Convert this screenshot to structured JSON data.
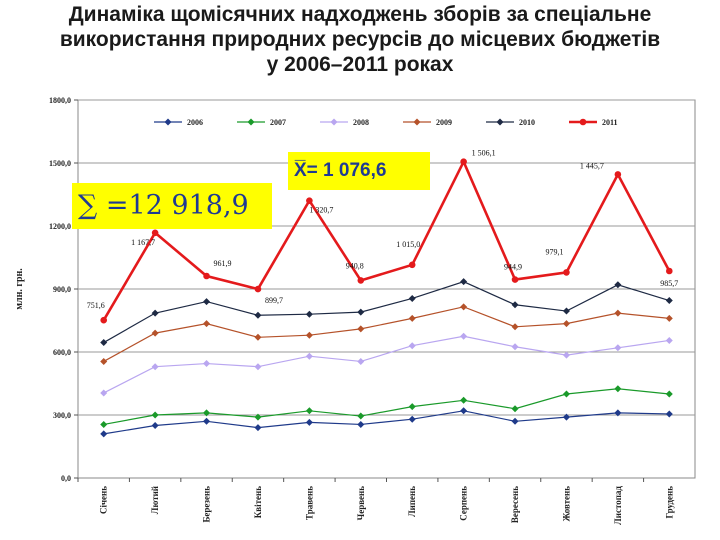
{
  "title": {
    "line1": "Динаміка щомісячних надходжень зборів за спеціальне",
    "line2": "використання природних ресурсів до місцевих бюджетів",
    "line3": "у 2006–2011 роках"
  },
  "annotations": {
    "mean": "X̅= 1 076,6",
    "sum": "∑ =12 918,9"
  },
  "colors": {
    "2006": "#1f3a8a",
    "2007": "#1a9a2a",
    "2008": "#b9a6f0",
    "2009": "#b5522a",
    "2010": "#1e2a44",
    "2011": "#e41a1c",
    "callout": "#ffff00"
  },
  "chart_data": {
    "type": "line",
    "ylabel": "млн. грн.",
    "xlabel": "",
    "ylim": [
      0,
      1800
    ],
    "yticks": [
      "0,0",
      "300,0",
      "600,0",
      "900,0",
      "1200,0",
      "1500,0",
      "1800,0"
    ],
    "grid": "horizontal",
    "legend": "top",
    "categories": [
      "Січень",
      "Лютий",
      "Березень",
      "Квітень",
      "Травень",
      "Червень",
      "Липень",
      "Серпень",
      "Вересень",
      "Жовтень",
      "Листопад",
      "Грудень"
    ],
    "series": [
      {
        "name": "2006",
        "values": [
          210,
          250,
          270,
          240,
          265,
          255,
          280,
          320,
          270,
          290,
          310,
          305
        ]
      },
      {
        "name": "2007",
        "values": [
          255,
          300,
          310,
          290,
          320,
          295,
          340,
          370,
          330,
          400,
          425,
          400
        ]
      },
      {
        "name": "2008",
        "values": [
          405,
          530,
          545,
          530,
          580,
          555,
          630,
          675,
          625,
          585,
          620,
          655
        ]
      },
      {
        "name": "2009",
        "values": [
          555,
          690,
          735,
          670,
          680,
          710,
          760,
          815,
          720,
          735,
          785,
          760
        ]
      },
      {
        "name": "2010",
        "values": [
          645,
          785,
          840,
          775,
          780,
          790,
          855,
          935,
          825,
          795,
          920,
          845
        ]
      },
      {
        "name": "2011",
        "values": [
          751.6,
          1167.7,
          961.9,
          899.7,
          1320.7,
          940.8,
          1015.0,
          1506.1,
          944.9,
          979.1,
          1445.7,
          985.7
        ]
      }
    ],
    "data_labels_2011": [
      "751,6",
      "1 167,7",
      "961,9",
      "899,7",
      "1 320,7",
      "940,8",
      "1 015,0",
      "1 506,1",
      "944,9",
      "979,1",
      "1 445,7",
      "985,7"
    ]
  }
}
